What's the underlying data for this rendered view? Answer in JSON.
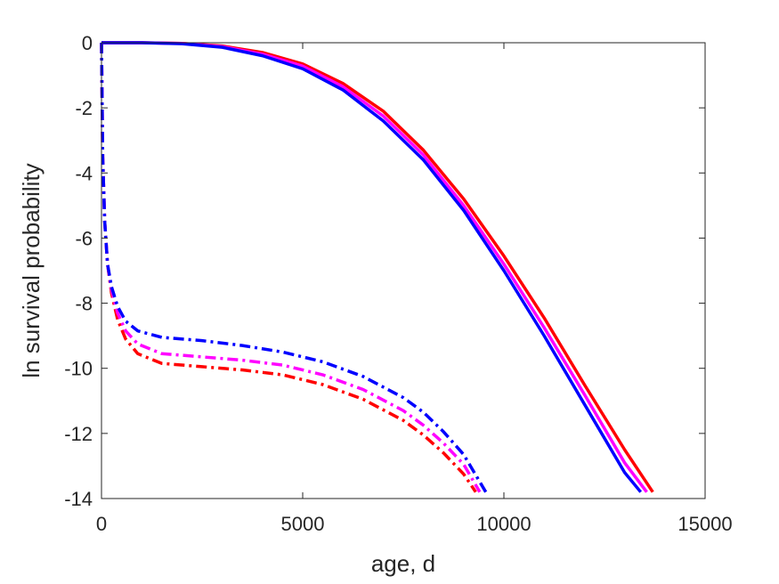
{
  "chart_data": {
    "type": "line",
    "title": "",
    "xlabel": "age, d",
    "ylabel": "ln survival probability",
    "xlim": [
      0,
      15000
    ],
    "ylim": [
      -14,
      0
    ],
    "xticks": [
      0,
      5000,
      10000,
      15000
    ],
    "yticks": [
      0,
      -2,
      -4,
      -6,
      -8,
      -10,
      -12,
      -14
    ],
    "xtick_labels": [
      "0",
      "5000",
      "10000",
      "15000"
    ],
    "ytick_labels": [
      "0",
      "-2",
      "-4",
      "-6",
      "-8",
      "-10",
      "-12",
      "-14"
    ],
    "grid": false,
    "legend": "none",
    "series": [
      {
        "color": "#ff0000",
        "style": "solid",
        "x": [
          0,
          1000,
          2000,
          3000,
          4000,
          5000,
          6000,
          7000,
          8000,
          9000,
          10000,
          11000,
          12000,
          13000,
          13700
        ],
        "y": [
          0,
          0,
          -0.02,
          -0.1,
          -0.3,
          -0.65,
          -1.25,
          -2.1,
          -3.3,
          -4.8,
          -6.55,
          -8.45,
          -10.5,
          -12.5,
          -13.8
        ]
      },
      {
        "color": "#ff00ff",
        "style": "solid",
        "x": [
          0,
          1000,
          2000,
          3000,
          4000,
          5000,
          6000,
          7000,
          8000,
          9000,
          10000,
          11000,
          12000,
          13000,
          13550
        ],
        "y": [
          0,
          0,
          -0.02,
          -0.12,
          -0.35,
          -0.72,
          -1.35,
          -2.25,
          -3.45,
          -5.0,
          -6.8,
          -8.75,
          -10.8,
          -12.9,
          -13.8
        ]
      },
      {
        "color": "#0000ff",
        "style": "solid",
        "x": [
          0,
          1000,
          2000,
          3000,
          4000,
          5000,
          6000,
          7000,
          8000,
          9000,
          10000,
          11000,
          12000,
          13000,
          13400
        ],
        "y": [
          0,
          0,
          -0.03,
          -0.14,
          -0.4,
          -0.8,
          -1.45,
          -2.4,
          -3.6,
          -5.15,
          -7.0,
          -9.0,
          -11.1,
          -13.2,
          -13.8
        ]
      },
      {
        "color": "#ff0000",
        "style": "dashdot",
        "x": [
          0,
          30,
          80,
          150,
          250,
          400,
          600,
          900,
          1500,
          2500,
          3500,
          4500,
          5500,
          6500,
          7500,
          8000,
          8500,
          9000,
          9300
        ],
        "y": [
          0,
          -3.5,
          -5.5,
          -6.8,
          -7.7,
          -8.5,
          -9.1,
          -9.55,
          -9.85,
          -9.95,
          -10.05,
          -10.2,
          -10.5,
          -10.95,
          -11.6,
          -12.05,
          -12.6,
          -13.25,
          -13.8
        ]
      },
      {
        "color": "#ff00ff",
        "style": "dashdot",
        "x": [
          0,
          30,
          80,
          150,
          250,
          400,
          600,
          900,
          1500,
          2500,
          3500,
          4500,
          5500,
          6500,
          7500,
          8000,
          8500,
          9000,
          9400
        ],
        "y": [
          0,
          -3.5,
          -5.5,
          -6.8,
          -7.6,
          -8.3,
          -8.85,
          -9.25,
          -9.55,
          -9.65,
          -9.75,
          -9.9,
          -10.2,
          -10.65,
          -11.3,
          -11.75,
          -12.3,
          -12.95,
          -13.8
        ]
      },
      {
        "color": "#0000ff",
        "style": "dashdot",
        "x": [
          0,
          30,
          80,
          150,
          250,
          400,
          600,
          900,
          1500,
          2500,
          3500,
          4500,
          5500,
          6500,
          7500,
          8000,
          8500,
          9000,
          9550
        ],
        "y": [
          0,
          -3.5,
          -5.5,
          -6.8,
          -7.5,
          -8.1,
          -8.55,
          -8.85,
          -9.05,
          -9.15,
          -9.3,
          -9.5,
          -9.8,
          -10.25,
          -10.9,
          -11.35,
          -11.95,
          -12.65,
          -13.8
        ]
      }
    ]
  }
}
